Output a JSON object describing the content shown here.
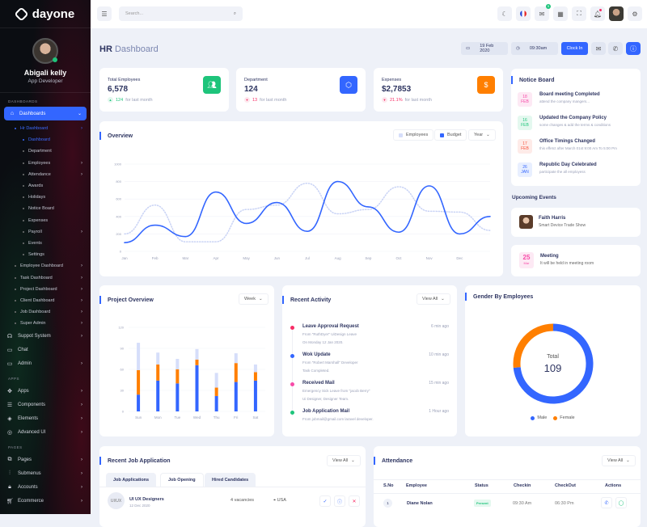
{
  "brand": "dayone",
  "user": {
    "name": "Abigali kelly",
    "role": "App Developer"
  },
  "sidebar": {
    "section_dashboards": "DASHBOARDS",
    "active": "Dashboards",
    "hr": "Hr Dashboard",
    "hr_items": [
      "Dashboard",
      "Department",
      "Employees",
      "Attendance",
      "Awards",
      "Holidays",
      "Notice Board",
      "Expenses",
      "Payroll",
      "Events",
      "Settings"
    ],
    "hr_items_arrow": [
      false,
      false,
      true,
      true,
      false,
      false,
      false,
      false,
      true,
      false,
      false
    ],
    "dash_items": [
      "Employee Dashboard",
      "Task Dashboard",
      "Project Dashboard",
      "Client Dashboard",
      "Job Dashboard",
      "Super Admin"
    ],
    "main": [
      {
        "label": "Suppot System",
        "icon": "headset-icon",
        "arrow": true
      },
      {
        "label": "Chat",
        "icon": "chat-icon",
        "arrow": false
      },
      {
        "label": "Admin",
        "icon": "monitor-icon",
        "arrow": true
      }
    ],
    "section_apps": "APPS",
    "apps": [
      {
        "label": "Apps",
        "icon": "apps-icon"
      },
      {
        "label": "Components",
        "icon": "components-icon"
      },
      {
        "label": "Elements",
        "icon": "elements-icon"
      },
      {
        "label": "Advanced UI",
        "icon": "lifebuoy-icon"
      }
    ],
    "section_pages": "PAGES",
    "pages": [
      {
        "label": "Pages",
        "icon": "pages-icon"
      },
      {
        "label": "Submenus",
        "icon": "sliders-icon"
      },
      {
        "label": "Accounts",
        "icon": "lock-icon"
      },
      {
        "label": "Ecommerce",
        "icon": "cart-icon"
      }
    ]
  },
  "header": {
    "search_placeholder": "Search...",
    "mail_badge": "5"
  },
  "page": {
    "title_bold": "HR",
    "title_rest": "Dashboard",
    "date": "19 Feb 2020",
    "time": "09:30am",
    "clock_in": "Clock In"
  },
  "stats": [
    {
      "label": "Total Employees",
      "value": "6,578",
      "change": "124",
      "suffix": "for last month",
      "color": "#1ec47b",
      "icon": "users-icon",
      "trend": "up"
    },
    {
      "label": "Department",
      "value": "124",
      "change": "13",
      "suffix": "for last month",
      "color": "#3366ff",
      "icon": "cube-icon",
      "trend": "down"
    },
    {
      "label": "Expenses",
      "value": "$2,7853",
      "change": "21.1%",
      "suffix": "for last month",
      "color": "#ff7f00",
      "icon": "dollar-icon",
      "trend": "down"
    }
  ],
  "notice_board": {
    "title": "Notice Board",
    "items": [
      {
        "day": "18",
        "month": "FEB",
        "title": "Board meeting Completed",
        "sub": "attend the company mangers...",
        "color": "#f74ba8",
        "bg": "#fde9f4"
      },
      {
        "day": "16",
        "month": "FEB",
        "title": "Updated the Company Policy",
        "sub": "some changes & add the terms & conditions",
        "color": "#1ec47b",
        "bg": "#e4f8ef"
      },
      {
        "day": "17",
        "month": "FEB",
        "title": "Office Timings Changed",
        "sub": "this effetct after March 01st 9:00 Am To 5:00 Pm",
        "color": "#f7543e",
        "bg": "#feebe8"
      },
      {
        "day": "26",
        "month": "JAN",
        "title": "Republic Day Celebrated",
        "sub": "participate the all employess",
        "color": "#3366ff",
        "bg": "#e8efff"
      }
    ]
  },
  "upcoming": {
    "title": "Upcoming Events",
    "event": {
      "name": "Faith Harris",
      "sub": "Smart Device Trade Show"
    },
    "meeting": {
      "day": "25",
      "month": "Mar",
      "title": "Meeting",
      "sub": "It will be held in meeting room"
    }
  },
  "overview": {
    "title": "Overview",
    "legend_employees": "Employees",
    "legend_budget": "Budget",
    "period": "Year"
  },
  "project_overview": {
    "title": "Project Overview",
    "period": "Week"
  },
  "recent_activity": {
    "title": "Recent Activity",
    "view_all": "View All",
    "items": [
      {
        "title": "Leave Approval Request",
        "lines": [
          "From \"RuthDyer\" UiDesign Leave",
          "On Monday 12 Jan 2020."
        ],
        "time": "6 min ago",
        "color": "#f72d66"
      },
      {
        "title": "Wok Update",
        "lines": [
          "From \"Robert Marshall\" Developer",
          "Task Completed."
        ],
        "time": "10 min ago",
        "color": "#3366ff"
      },
      {
        "title": "Received Mail",
        "lines": [
          "Emergency Sick Leave from \"jacob Berry\"",
          "Ui Designer, Designer Team."
        ],
        "time": "15 min ago",
        "color": "#f74ba8"
      },
      {
        "title": "Job Application Mail",
        "lines": [
          "From jobmail@gmail.com laravel developer."
        ],
        "time": "1 Hour ago",
        "color": "#1ec47b"
      }
    ]
  },
  "gender": {
    "title": "Gender By Employees",
    "total_label": "Total",
    "total": "109"
  },
  "jobs": {
    "title": "Recent Job Application",
    "view_all": "View All",
    "tabs": [
      "Job Applications",
      "Job Opening",
      "Hired Candidates"
    ],
    "active_tab": 1,
    "row": {
      "avatar": "UI/UX",
      "title": "UI UX Designers",
      "date": "12 Dec 2020",
      "vacancies": "4 vacancies",
      "location": "USA"
    }
  },
  "attendance": {
    "title": "Attendance",
    "view_all": "View All",
    "headers": [
      "S.No",
      "Employee",
      "Status",
      "Checkin",
      "CheckOut",
      "Actions"
    ],
    "rows": [
      {
        "sno": "1",
        "employee": "Diane Nolan",
        "status": "Present",
        "checkin": "09:30 Am",
        "checkout": "06:30 Pm"
      }
    ]
  },
  "chart_data": [
    {
      "type": "line",
      "title": "Overview",
      "x": [
        "Jan",
        "Feb",
        "Mar",
        "Apr",
        "May",
        "Jun",
        "Jul",
        "Aug",
        "Sep",
        "Oct",
        "Nov",
        "Dec",
        ""
      ],
      "ylim": [
        0,
        1000
      ],
      "yticks": [
        0,
        200,
        400,
        600,
        800,
        1000
      ],
      "grid": true,
      "legend": "top-right",
      "series": [
        {
          "name": "Employees",
          "color": "#c9d3f5",
          "style": "dotted",
          "values": [
            200,
            530,
            110,
            110,
            480,
            530,
            780,
            430,
            480,
            740,
            460,
            450,
            240
          ]
        },
        {
          "name": "Budget",
          "color": "#3366ff",
          "style": "solid",
          "values": [
            100,
            300,
            170,
            680,
            320,
            560,
            230,
            800,
            510,
            220,
            750,
            200,
            400
          ]
        }
      ]
    },
    {
      "type": "bar",
      "stacked": true,
      "title": "Project Overview",
      "categories": [
        "Sun",
        "Mon",
        "Tue",
        "Wed",
        "Thu",
        "Fri",
        "Sat"
      ],
      "ylim": [
        0,
        120
      ],
      "yticks": [
        0,
        30,
        60,
        90,
        120
      ],
      "series": [
        {
          "color": "#3366ff",
          "values": [
            24,
            44,
            40,
            66,
            22,
            42,
            44
          ]
        },
        {
          "color": "#ff7f00",
          "values": [
            35,
            23,
            20,
            8,
            12,
            27,
            12
          ]
        },
        {
          "color": "#d6defa",
          "values": [
            39,
            17,
            15,
            15,
            21,
            14,
            11
          ]
        }
      ]
    },
    {
      "type": "pie",
      "donut": true,
      "title": "Gender By Employees",
      "categories": [
        "Male",
        "Female"
      ],
      "values": [
        80,
        29
      ],
      "colors": [
        "#3366ff",
        "#ff7f00"
      ],
      "legend": "bottom"
    }
  ]
}
